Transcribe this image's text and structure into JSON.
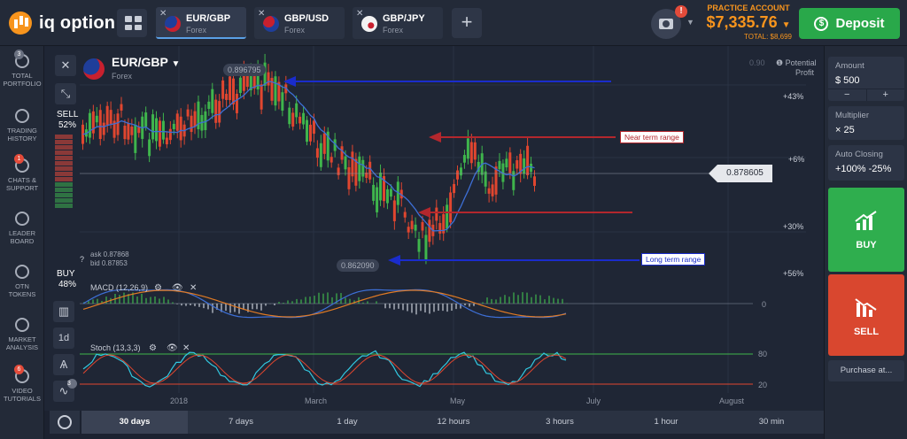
{
  "app": {
    "logo_text": "iq option"
  },
  "tabs": [
    {
      "name": "EUR/GBP",
      "sub": "Forex"
    },
    {
      "name": "GBP/USD",
      "sub": "Forex"
    },
    {
      "name": "GBP/JPY",
      "sub": "Forex"
    }
  ],
  "header": {
    "add_tab": "+",
    "notification_count": "!",
    "account_label": "PRACTICE ACCOUNT",
    "balance": "$7,335.76",
    "total": "TOTAL: $8,699",
    "deposit_label": "Deposit"
  },
  "leftnav": [
    {
      "label1": "TOTAL",
      "label2": "PORTFOLIO",
      "badge": "3",
      "icon": "briefcase-icon"
    },
    {
      "label1": "TRADING",
      "label2": "HISTORY",
      "badge": "",
      "icon": "history-clock-icon"
    },
    {
      "label1": "CHATS &",
      "label2": "SUPPORT",
      "badge": "1",
      "icon": "chat-bubble-icon"
    },
    {
      "label1": "LEADER",
      "label2": "BOARD",
      "badge": "",
      "icon": "trophy-icon"
    },
    {
      "label1": "OTN",
      "label2": "TOKENS",
      "badge": "",
      "icon": "token-icon"
    },
    {
      "label1": "MARKET",
      "label2": "ANALYSIS",
      "badge": "",
      "icon": "megaphone-icon"
    },
    {
      "label1": "VIDEO",
      "label2": "TUTORIALS",
      "badge": "6",
      "icon": "play-circle-icon"
    }
  ],
  "chart_header": {
    "asset": "EUR/GBP",
    "asset_type": "Forex"
  },
  "sentiment": {
    "sell_label": "SELL",
    "sell_pct": "52%",
    "buy_label": "BUY",
    "buy_pct": "48%"
  },
  "quotes": {
    "ask": "ask 0.87868",
    "bid": "bid 0.87853"
  },
  "price_tags": {
    "high": "0.896795",
    "low": "0.862090",
    "current": "0.878605",
    "top_partial": "0.90"
  },
  "right_axis": {
    "potential_label": "Potential",
    "profit_label": "Profit",
    "p1": "+43%",
    "p2": "+6%",
    "p3": "+30%",
    "p4": "+56%"
  },
  "annotations": {
    "near": "Near term range",
    "long": "Long term range"
  },
  "indicators": {
    "macd": {
      "label": "MACD (12,26,9)",
      "zero": "0"
    },
    "stoch": {
      "label": "Stoch (13,3,3)",
      "high": "80",
      "low": "20"
    }
  },
  "left_tools": {
    "close": "✕",
    "collapse": "⤡",
    "period": "1d",
    "badge_three": "3"
  },
  "x_axis": [
    "2018",
    "March",
    "May",
    "July",
    "August"
  ],
  "timeframes": [
    "30 days",
    "7 days",
    "1 day",
    "12 hours",
    "3 hours",
    "1 hour",
    "30 min"
  ],
  "timeframe_active": "30 days",
  "order": {
    "amount_label": "Amount",
    "amount_value": "$  500",
    "minus": "−",
    "plus": "+",
    "multiplier_label": "Multiplier",
    "multiplier_value": "× 25",
    "auto_label": "Auto Closing",
    "auto_value": "+100%  -25%",
    "buy_label": "BUY",
    "sell_label": "SELL",
    "purchase_label": "Purchase at..."
  },
  "colors": {
    "bull": "#3fb54c",
    "bear": "#e0462f",
    "accent": "#f7941d",
    "deposit": "#29a84a",
    "ma_blue": "#3d6fd6",
    "macd_orange": "#e07a24",
    "stoch_cyan": "#32c8e0",
    "stoch_red": "#e0462f"
  },
  "chart_data": {
    "type": "line",
    "title": "EUR/GBP",
    "ylim": [
      0.855,
      0.9
    ],
    "x": [
      "2018",
      "March",
      "May",
      "July",
      "August"
    ],
    "series": [],
    "annotations": [
      "Near term range",
      "Long term range"
    ],
    "levels": {
      "high": 0.896795,
      "low": 0.86209,
      "current": 0.878605
    }
  }
}
